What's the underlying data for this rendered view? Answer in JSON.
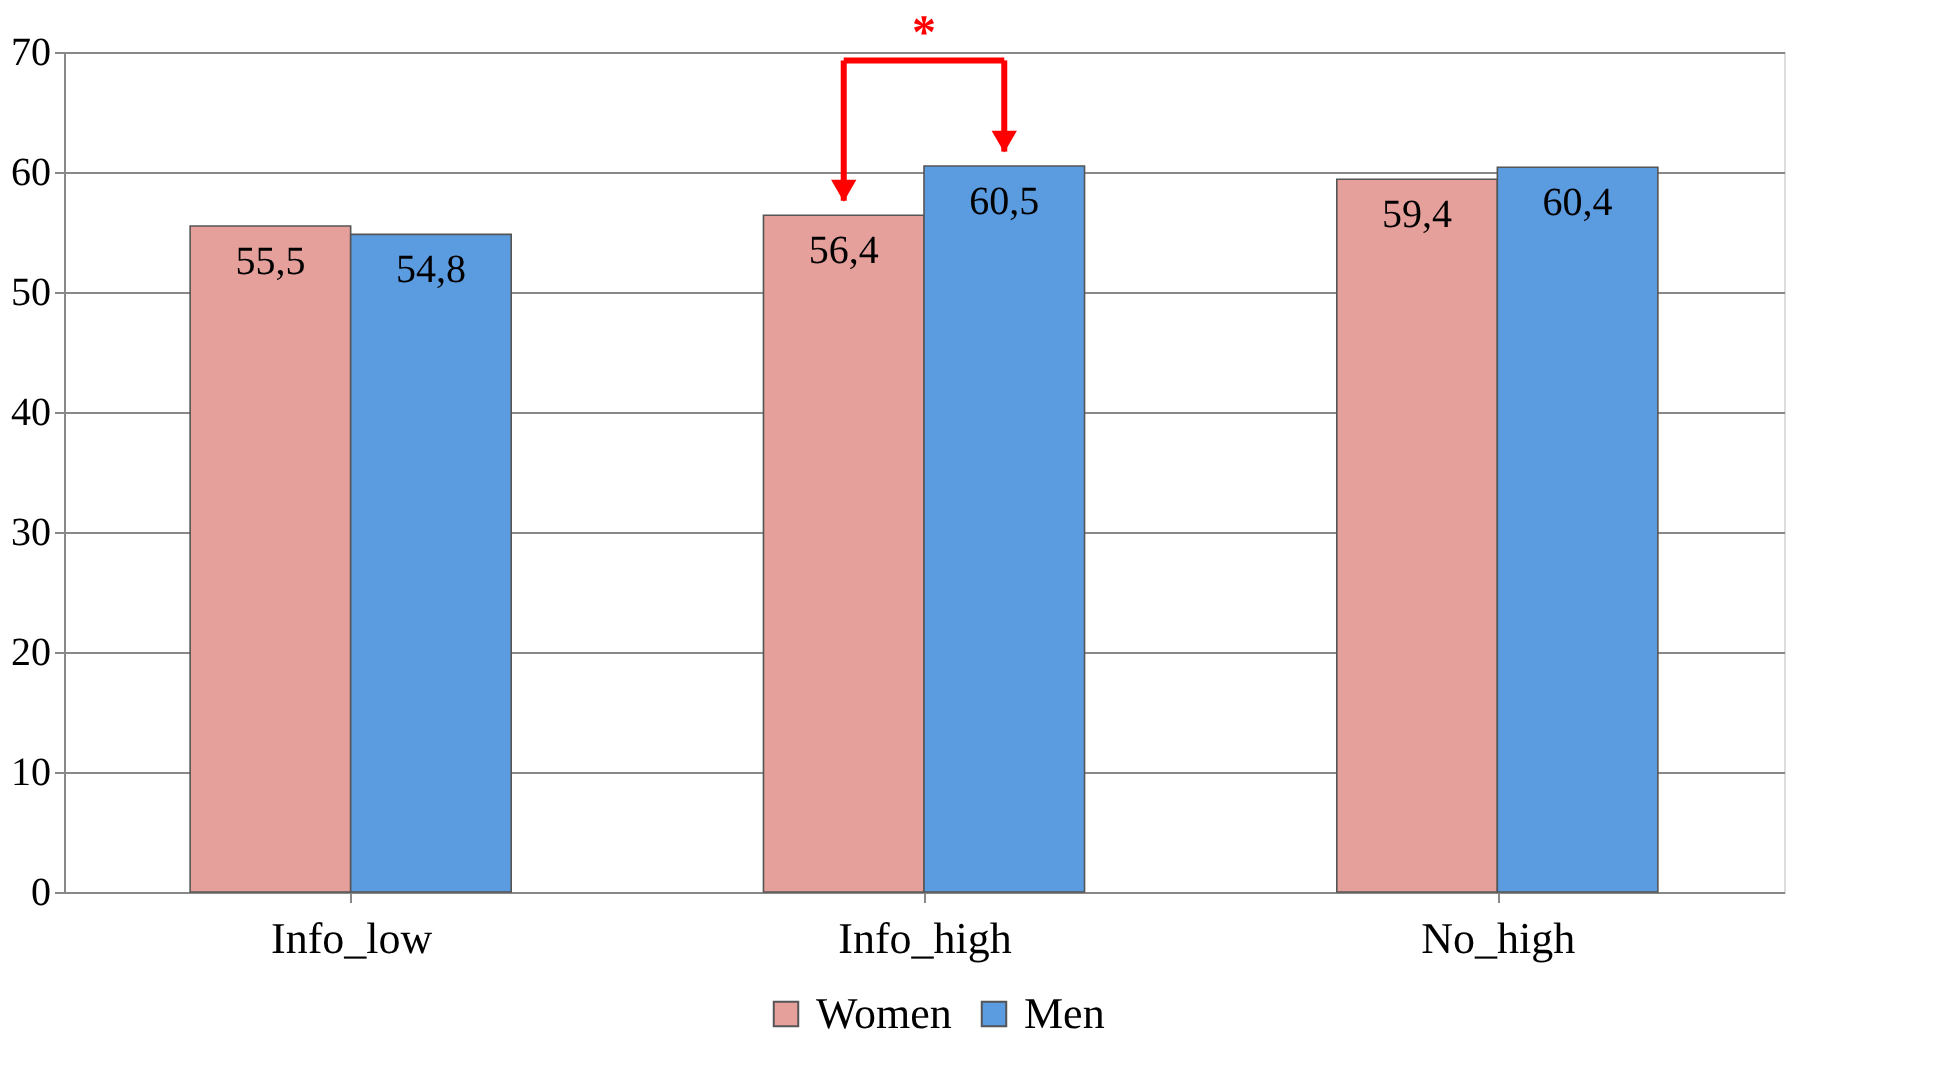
{
  "chart_data": {
    "type": "bar",
    "categories": [
      "Info_low",
      "Info_high",
      "No_high"
    ],
    "series": [
      {
        "name": "Women",
        "color": "#e6a09c",
        "values": [
          55.5,
          56.4,
          59.4
        ],
        "value_labels": [
          "55,5",
          "56,4",
          "59,4"
        ]
      },
      {
        "name": "Men",
        "color": "#5b9be0",
        "values": [
          54.8,
          60.5,
          60.4
        ],
        "value_labels": [
          "54,8",
          "60,5",
          "60,4"
        ]
      }
    ],
    "ylim": [
      0,
      70
    ],
    "yticks": [
      0,
      10,
      20,
      30,
      40,
      50,
      60,
      70
    ],
    "grid": "y",
    "legend": "bottom",
    "annotations": [
      {
        "text": "*",
        "x": "Info_high",
        "y": 60.5
      }
    ]
  }
}
